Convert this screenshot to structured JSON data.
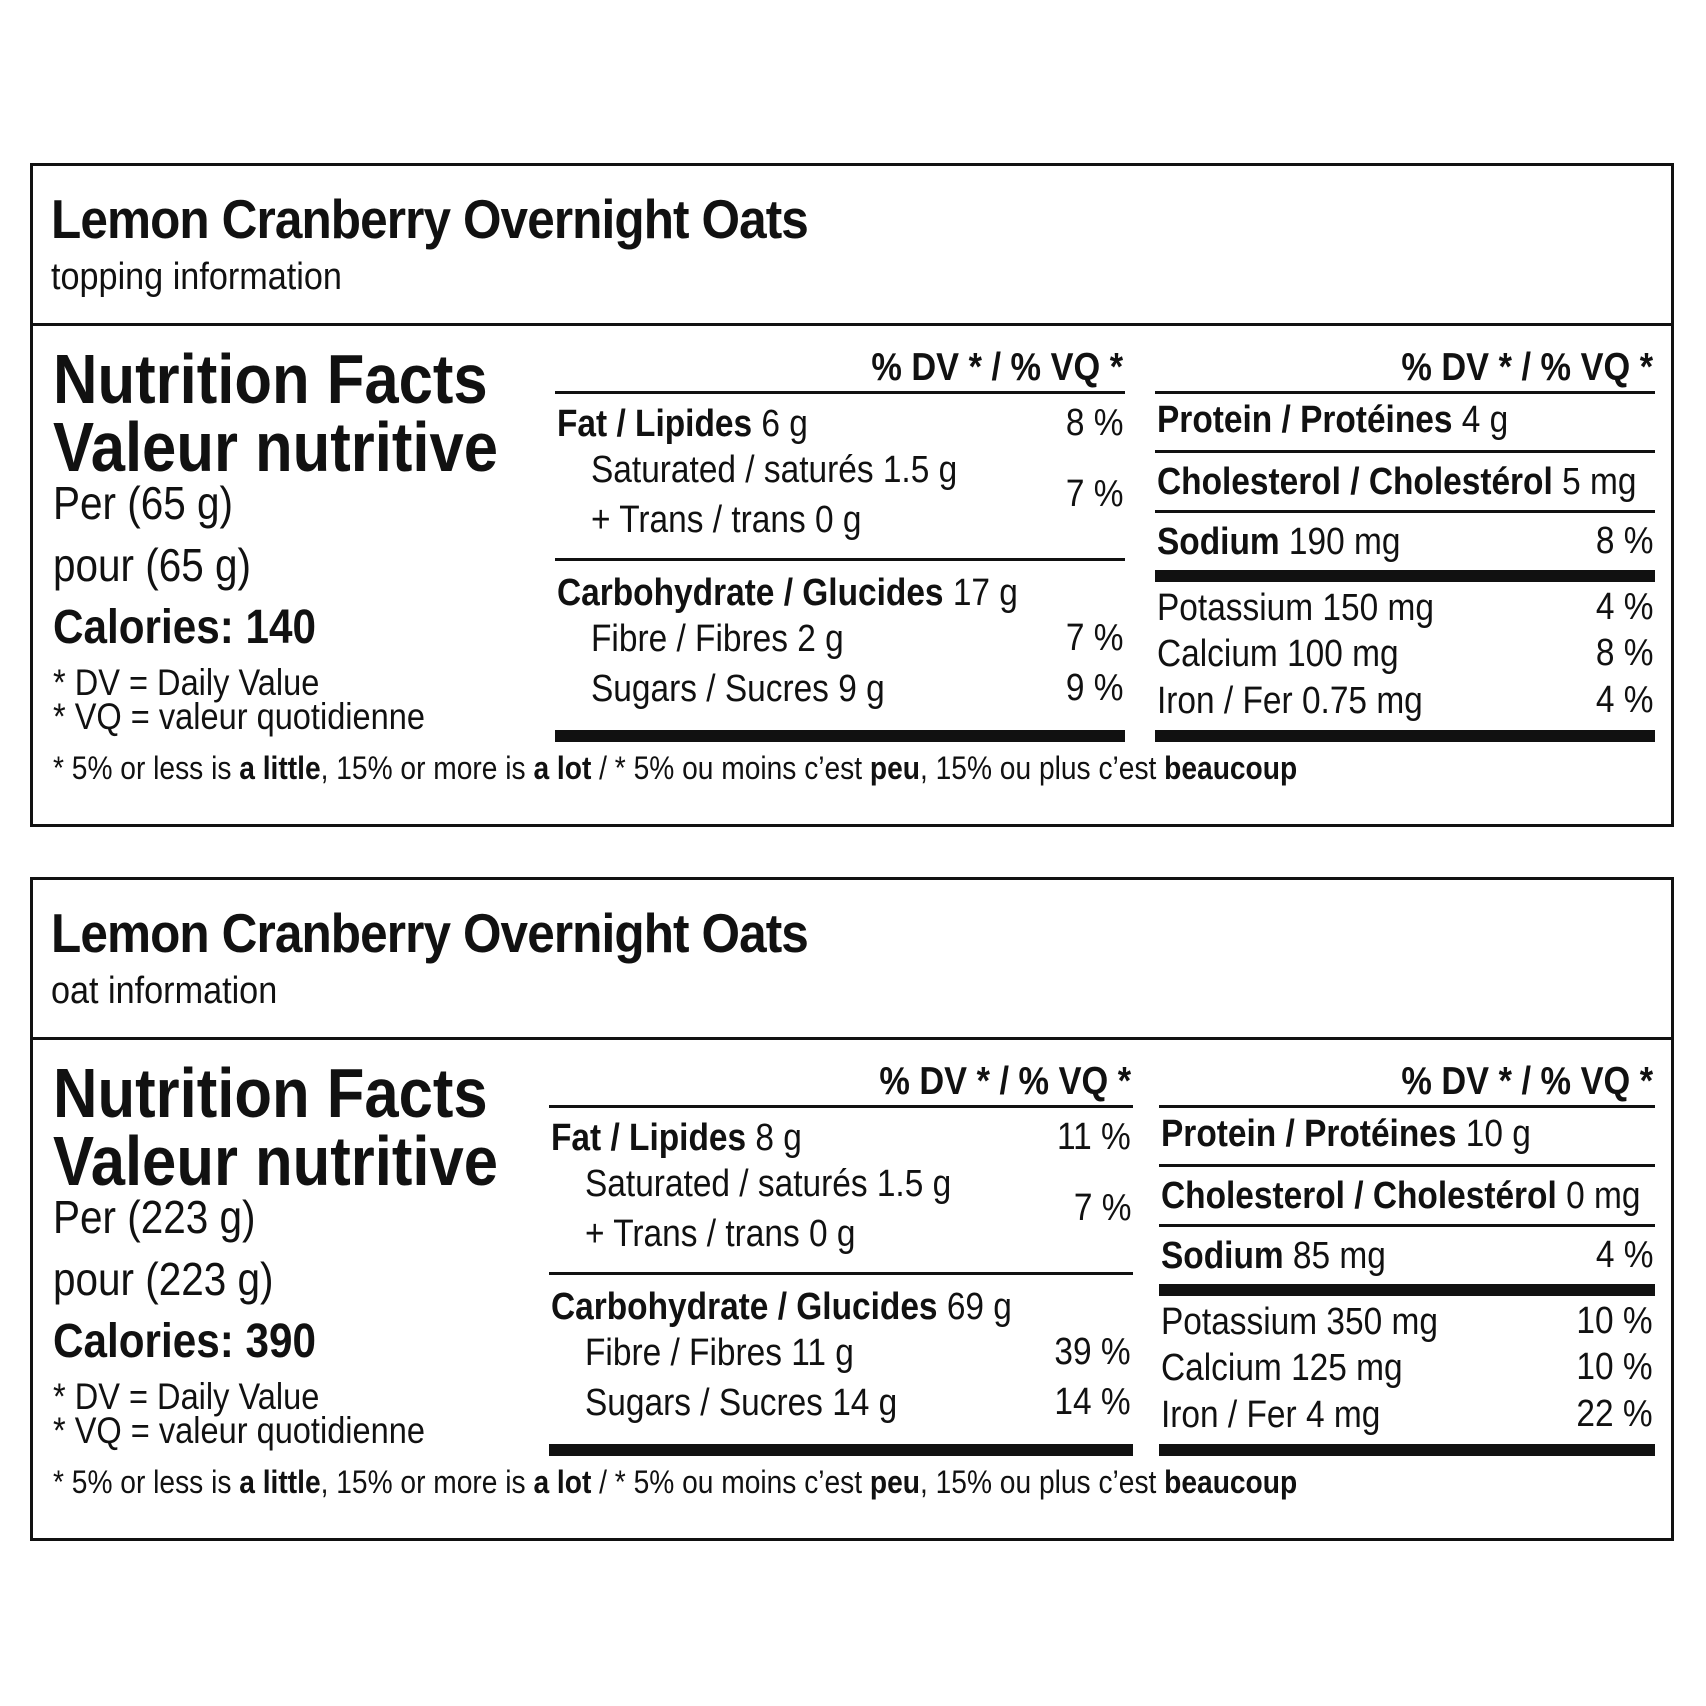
{
  "labels": [
    {
      "title": "Lemon Cranberry Overnight Oats",
      "subtitle": "topping information",
      "heading_en": "Nutrition Facts",
      "heading_fr": "Valeur nutritive",
      "per_en": "Per (65 g)",
      "per_fr": "pour (65 g)",
      "calories_label": "Calories:",
      "calories_value": "140",
      "note_dv": "* DV = Daily Value",
      "note_vq": "* VQ = valeur quotidienne",
      "dv_header": "% DV * / % VQ *",
      "fat": {
        "label": "Fat / Lipides",
        "value": "6 g",
        "pct": "8 %"
      },
      "saturated": {
        "label": "Saturated / saturés 1.5 g"
      },
      "trans": {
        "label": "+ Trans / trans 0 g"
      },
      "sat_trans_pct": "7 %",
      "carb": {
        "label": "Carbohydrate / Glucides",
        "value": "17 g"
      },
      "fibre": {
        "label": "Fibre / Fibres 2 g",
        "pct": "7 %"
      },
      "sugars": {
        "label": "Sugars / Sucres 9 g",
        "pct": "9 %"
      },
      "protein": {
        "label": "Protein / Protéines",
        "value": "4 g"
      },
      "cholesterol": {
        "label": "Cholesterol / Cholestérol",
        "value": "5 mg"
      },
      "sodium": {
        "label": "Sodium",
        "value": "190 mg",
        "pct": "8 %"
      },
      "potassium": {
        "label": "Potassium 150 mg",
        "pct": "4 %"
      },
      "calcium": {
        "label": "Calcium 100 mg",
        "pct": "8 %"
      },
      "iron": {
        "label": "Iron / Fer 0.75 mg",
        "pct": "4 %"
      },
      "footer": {
        "p1": "* 5% or less is ",
        "b1": "a little",
        "p2": ", 15% or more is ",
        "b2": "a lot",
        "p3": " / * 5% ou moins c’est ",
        "b3": "peu",
        "p4": ", 15% ou plus c’est ",
        "b4": "beaucoup"
      }
    },
    {
      "title": "Lemon Cranberry Overnight Oats",
      "subtitle": "oat information",
      "heading_en": "Nutrition Facts",
      "heading_fr": "Valeur nutritive",
      "per_en": "Per (223 g)",
      "per_fr": "pour (223 g)",
      "calories_label": "Calories:",
      "calories_value": "390",
      "note_dv": "* DV = Daily Value",
      "note_vq": "* VQ = valeur quotidienne",
      "dv_header": "% DV * / % VQ *",
      "fat": {
        "label": "Fat / Lipides",
        "value": "8 g",
        "pct": "11 %"
      },
      "saturated": {
        "label": "Saturated / saturés 1.5 g"
      },
      "trans": {
        "label": "+ Trans / trans 0 g"
      },
      "sat_trans_pct": "7 %",
      "carb": {
        "label": "Carbohydrate / Glucides",
        "value": "69 g"
      },
      "fibre": {
        "label": "Fibre / Fibres 11 g",
        "pct": "39 %"
      },
      "sugars": {
        "label": "Sugars / Sucres 14 g",
        "pct": "14 %"
      },
      "protein": {
        "label": "Protein / Protéines",
        "value": "10 g"
      },
      "cholesterol": {
        "label": "Cholesterol / Cholestérol",
        "value": "0 mg"
      },
      "sodium": {
        "label": "Sodium",
        "value": "85 mg",
        "pct": "4 %"
      },
      "potassium": {
        "label": "Potassium 350 mg",
        "pct": "10 %"
      },
      "calcium": {
        "label": "Calcium 125 mg",
        "pct": "10 %"
      },
      "iron": {
        "label": "Iron / Fer 4 mg",
        "pct": "22 %"
      },
      "footer": {
        "p1": "* 5% or less is ",
        "b1": "a little",
        "p2": ", 15% or more is ",
        "b2": "a lot",
        "p3": " / * 5% ou moins c’est ",
        "b3": "peu",
        "p4": ", 15% ou plus c’est ",
        "b4": "beaucoup"
      }
    }
  ]
}
